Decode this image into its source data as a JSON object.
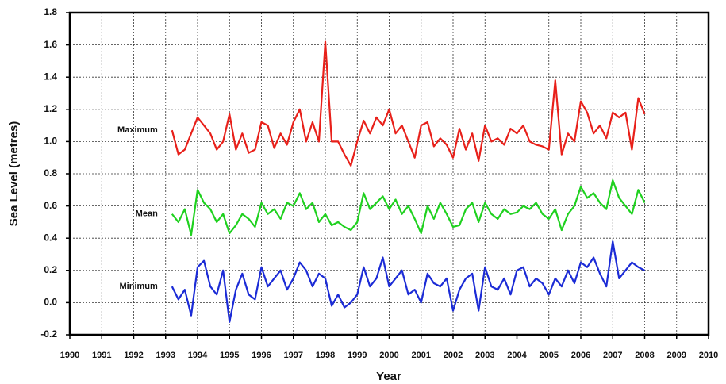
{
  "chart_data": {
    "type": "line",
    "x_label": "Year",
    "y_label": "Sea Level (metres)",
    "x": [
      1993.2,
      1993.4,
      1993.6,
      1993.8,
      1994,
      1994.2,
      1994.4,
      1994.6,
      1994.8,
      1995,
      1995.2,
      1995.4,
      1995.6,
      1995.8,
      1996,
      1996.2,
      1996.4,
      1996.6,
      1996.8,
      1997,
      1997.2,
      1997.4,
      1997.6,
      1997.8,
      1998,
      1998.2,
      1998.4,
      1998.6,
      1998.8,
      1999,
      1999.2,
      1999.4,
      1999.6,
      1999.8,
      2000,
      2000.2,
      2000.4,
      2000.6,
      2000.8,
      2001,
      2001.2,
      2001.4,
      2001.6,
      2001.8,
      2002,
      2002.2,
      2002.4,
      2002.6,
      2002.8,
      2003,
      2003.2,
      2003.4,
      2003.6,
      2003.8,
      2004,
      2004.2,
      2004.4,
      2004.6,
      2004.8,
      2005,
      2005.2,
      2005.4,
      2005.6,
      2005.8,
      2006,
      2006.2,
      2006.4,
      2006.6,
      2006.8,
      2007,
      2007.2,
      2007.4,
      2007.6,
      2007.8,
      2008
    ],
    "series": [
      {
        "name": "Maximum",
        "color": "#e8201a",
        "values": [
          1.07,
          0.92,
          0.95,
          1.05,
          1.15,
          1.1,
          1.05,
          0.95,
          1.0,
          1.17,
          0.95,
          1.05,
          0.93,
          0.95,
          1.12,
          1.1,
          0.96,
          1.05,
          0.98,
          1.12,
          1.2,
          1.0,
          1.12,
          1.0,
          1.62,
          1.0,
          1.0,
          0.92,
          0.85,
          1.0,
          1.13,
          1.05,
          1.15,
          1.1,
          1.2,
          1.05,
          1.1,
          1.0,
          0.9,
          1.1,
          1.12,
          0.97,
          1.02,
          0.98,
          0.9,
          1.08,
          0.95,
          1.05,
          0.88,
          1.1,
          1.0,
          1.02,
          0.98,
          1.08,
          1.05,
          1.1,
          1.0,
          0.98,
          0.97,
          0.95,
          1.38,
          0.92,
          1.05,
          1.0,
          1.25,
          1.18,
          1.05,
          1.1,
          1.02,
          1.18,
          1.15,
          1.18,
          0.95,
          1.27,
          1.17
        ]
      },
      {
        "name": "Mean",
        "color": "#1fd11f",
        "values": [
          0.55,
          0.5,
          0.58,
          0.42,
          0.7,
          0.62,
          0.58,
          0.5,
          0.55,
          0.43,
          0.48,
          0.55,
          0.52,
          0.47,
          0.62,
          0.55,
          0.58,
          0.52,
          0.62,
          0.6,
          0.68,
          0.58,
          0.62,
          0.5,
          0.55,
          0.48,
          0.5,
          0.47,
          0.45,
          0.5,
          0.68,
          0.58,
          0.62,
          0.66,
          0.58,
          0.64,
          0.55,
          0.6,
          0.52,
          0.43,
          0.6,
          0.52,
          0.62,
          0.55,
          0.47,
          0.48,
          0.58,
          0.62,
          0.5,
          0.62,
          0.55,
          0.52,
          0.58,
          0.55,
          0.56,
          0.6,
          0.58,
          0.62,
          0.55,
          0.52,
          0.58,
          0.45,
          0.55,
          0.6,
          0.72,
          0.65,
          0.68,
          0.62,
          0.58,
          0.76,
          0.65,
          0.6,
          0.55,
          0.7,
          0.62
        ]
      },
      {
        "name": "Minimum",
        "color": "#1b2bd6",
        "values": [
          0.1,
          0.02,
          0.08,
          -0.08,
          0.22,
          0.26,
          0.1,
          0.05,
          0.2,
          -0.12,
          0.08,
          0.18,
          0.05,
          0.02,
          0.22,
          0.1,
          0.15,
          0.2,
          0.08,
          0.15,
          0.25,
          0.2,
          0.1,
          0.18,
          0.15,
          -0.02,
          0.05,
          -0.03,
          0.0,
          0.05,
          0.22,
          0.1,
          0.15,
          0.28,
          0.1,
          0.15,
          0.2,
          0.05,
          0.08,
          0.0,
          0.18,
          0.12,
          0.1,
          0.15,
          -0.05,
          0.08,
          0.15,
          0.18,
          -0.05,
          0.22,
          0.1,
          0.08,
          0.15,
          0.05,
          0.2,
          0.22,
          0.1,
          0.15,
          0.12,
          0.05,
          0.15,
          0.1,
          0.2,
          0.12,
          0.25,
          0.22,
          0.28,
          0.18,
          0.1,
          0.38,
          0.15,
          0.2,
          0.25,
          0.22,
          0.2
        ]
      }
    ],
    "xlim": [
      1990,
      2010
    ],
    "xticks": [
      1990,
      1991,
      1992,
      1993,
      1994,
      1995,
      1996,
      1997,
      1998,
      1999,
      2000,
      2001,
      2002,
      2003,
      2004,
      2005,
      2006,
      2007,
      2008,
      2009,
      2010
    ],
    "ylim": [
      -0.2,
      1.8
    ],
    "yticks": [
      -0.2,
      {
        "value": 0,
        "label": "0.0"
      },
      0.2,
      0.4,
      0.6,
      0.8,
      {
        "value": 1,
        "label": "1.0"
      },
      1.2,
      1.4,
      1.6,
      1.8
    ],
    "grid": true
  }
}
